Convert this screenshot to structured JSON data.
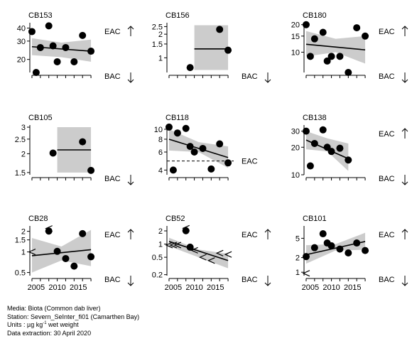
{
  "chart_data": [
    {
      "type": "scatter",
      "title": "CB153",
      "ylog": true,
      "ylim": [
        15,
        45
      ],
      "yticks": [
        20,
        30,
        40
      ],
      "points": [
        [
          2004,
          37
        ],
        [
          2005,
          15
        ],
        [
          2006,
          26
        ],
        [
          2008,
          42
        ],
        [
          2009,
          27
        ],
        [
          2010,
          19
        ],
        [
          2012,
          26
        ],
        [
          2014,
          19
        ],
        [
          2016,
          34
        ],
        [
          2018,
          24
        ]
      ],
      "trend": [
        [
          2004,
          26.5
        ],
        [
          2018,
          24
        ]
      ],
      "band": {
        "upper": [
          [
            2004,
            32
          ],
          [
            2011,
            29
          ],
          [
            2018,
            31
          ]
        ],
        "lower": [
          [
            2004,
            22
          ],
          [
            2011,
            21
          ],
          [
            2018,
            19
          ]
        ]
      },
      "eac_label": "EAC",
      "eac_dir": "up",
      "bac_label": "BAC",
      "bac_dir": "down",
      "refline": null,
      "censored": []
    },
    {
      "type": "scatter",
      "title": "CB156",
      "ylog": true,
      "ylim": [
        0.65,
        2.8
      ],
      "yticks": [
        1.0,
        1.5,
        2.0,
        2.5
      ],
      "points": [
        [
          2009,
          0.75
        ],
        [
          2016,
          2.3
        ],
        [
          2018,
          1.25
        ]
      ],
      "trend": [
        [
          2010,
          1.3
        ],
        [
          2018,
          1.3
        ]
      ],
      "band": {
        "upper": [
          [
            2010,
            2.6
          ],
          [
            2018,
            2.6
          ]
        ],
        "lower": [
          [
            2010,
            0.7
          ],
          [
            2018,
            0.7
          ]
        ]
      },
      "eac_label": "",
      "eac_dir": "",
      "bac_label": "BAC",
      "bac_dir": "down",
      "refline": null,
      "censored": []
    },
    {
      "type": "scatter",
      "title": "CB180",
      "ylog": true,
      "ylim": [
        6,
        21
      ],
      "yticks": [
        10,
        15,
        20
      ],
      "points": [
        [
          2004,
          20
        ],
        [
          2005,
          9
        ],
        [
          2006,
          14
        ],
        [
          2008,
          16.5
        ],
        [
          2009,
          8
        ],
        [
          2010,
          9
        ],
        [
          2012,
          9
        ],
        [
          2014,
          6
        ],
        [
          2016,
          18.5
        ],
        [
          2018,
          15
        ]
      ],
      "trend": [
        [
          2004,
          12.2
        ],
        [
          2018,
          10.6
        ]
      ],
      "band": {
        "upper": [
          [
            2004,
            17
          ],
          [
            2011,
            14
          ],
          [
            2018,
            15
          ]
        ],
        "lower": [
          [
            2004,
            9
          ],
          [
            2011,
            10
          ],
          [
            2018,
            7.5
          ]
        ]
      },
      "eac_label": "EAC",
      "eac_dir": "up",
      "bac_label": "BAC",
      "bac_dir": "down",
      "refline": null,
      "censored": []
    },
    {
      "type": "scatter",
      "title": "CB105",
      "ylog": true,
      "ylim": [
        1.45,
        3.1
      ],
      "yticks": [
        1.5,
        2.0,
        2.5,
        3.0
      ],
      "points": [
        [
          2009,
          2.02
        ],
        [
          2016,
          2.4
        ],
        [
          2018,
          1.55
        ]
      ],
      "trend": [
        [
          2010,
          2.12
        ],
        [
          2018,
          2.12
        ]
      ],
      "band": {
        "upper": [
          [
            2010,
            3.0
          ],
          [
            2018,
            3.0
          ]
        ],
        "lower": [
          [
            2010,
            1.5
          ],
          [
            2018,
            1.5
          ]
        ]
      },
      "eac_label": "",
      "eac_dir": "",
      "bac_label": "BAC",
      "bac_dir": "down",
      "refline": null,
      "censored": []
    },
    {
      "type": "scatter",
      "title": "CB118",
      "ylog": true,
      "ylim": [
        3.6,
        11
      ],
      "yticks": [
        4,
        6,
        8,
        10
      ],
      "points": [
        [
          2004,
          10.5
        ],
        [
          2005,
          4
        ],
        [
          2006,
          9.2
        ],
        [
          2008,
          10.2
        ],
        [
          2009,
          6.8
        ],
        [
          2010,
          6
        ],
        [
          2012,
          6.5
        ],
        [
          2014,
          4.1
        ],
        [
          2016,
          7.2
        ],
        [
          2018,
          4.7
        ]
      ],
      "trend": [
        [
          2004,
          8.0
        ],
        [
          2018,
          5.3
        ]
      ],
      "band": {
        "upper": [
          [
            2004,
            10
          ],
          [
            2011,
            7.5
          ],
          [
            2018,
            6.8
          ]
        ],
        "lower": [
          [
            2004,
            6.2
          ],
          [
            2011,
            6.0
          ],
          [
            2018,
            4.2
          ]
        ]
      },
      "eac_label": "EAC",
      "eac_dir": "",
      "bac_label": "",
      "bac_dir": "",
      "refline": 4.9,
      "censored": []
    },
    {
      "type": "scatter",
      "title": "CB138",
      "ylog": true,
      "ylim": [
        10,
        35
      ],
      "yticks": [
        10,
        20,
        30
      ],
      "points": [
        [
          2004,
          30
        ],
        [
          2005,
          12.5
        ],
        [
          2006,
          22
        ],
        [
          2008,
          31
        ],
        [
          2009,
          20
        ],
        [
          2010,
          18
        ],
        [
          2012,
          19.5
        ],
        [
          2014,
          14.5
        ]
      ],
      "trend": [
        [
          2004,
          24
        ],
        [
          2014,
          15
        ]
      ],
      "band": {
        "upper": [
          [
            2004,
            30
          ],
          [
            2009,
            25
          ],
          [
            2014,
            22
          ]
        ],
        "lower": [
          [
            2004,
            19
          ],
          [
            2009,
            18
          ],
          [
            2014,
            11
          ]
        ]
      },
      "eac_label": "EAC",
      "eac_dir": "up",
      "bac_label": "BAC",
      "bac_dir": "down",
      "refline": null,
      "censored": []
    },
    {
      "type": "scatter",
      "title": "CB28",
      "ylog": true,
      "ylim": [
        0.45,
        2.4
      ],
      "yticks": [
        0.5,
        1.0,
        1.5,
        2.0
      ],
      "points": [
        [
          2008,
          2.02
        ],
        [
          2010,
          1.02
        ],
        [
          2012,
          0.8
        ],
        [
          2014,
          0.62
        ],
        [
          2016,
          1.85
        ],
        [
          2018,
          0.85
        ]
      ],
      "trend": [
        [
          2004,
          0.88
        ],
        [
          2018,
          1.08
        ]
      ],
      "band": {
        "upper": [
          [
            2004,
            1.6
          ],
          [
            2011,
            1.2
          ],
          [
            2018,
            2.1
          ]
        ],
        "lower": [
          [
            2004,
            0.5
          ],
          [
            2011,
            0.75
          ],
          [
            2018,
            0.62
          ]
        ]
      },
      "eac_label": "EAC",
      "eac_dir": "up",
      "bac_label": "BAC",
      "bac_dir": "down",
      "refline": null,
      "censored": [
        [
          2004,
          1.0
        ],
        [
          2008,
          2.2
        ]
      ]
    },
    {
      "type": "scatter",
      "title": "CB52",
      "ylog": true,
      "ylim": [
        0.19,
        2.6
      ],
      "yticks": [
        0.2,
        0.5,
        1.0,
        2.0
      ],
      "points": [
        [
          2008,
          2.02
        ],
        [
          2009,
          0.85
        ]
      ],
      "trend": [
        [
          2004,
          1.15
        ],
        [
          2018,
          0.42
        ]
      ],
      "band": {
        "upper": [
          [
            2004,
            1.4
          ],
          [
            2011,
            0.75
          ],
          [
            2018,
            0.6
          ]
        ],
        "lower": [
          [
            2004,
            0.9
          ],
          [
            2011,
            0.5
          ],
          [
            2018,
            0.28
          ]
        ]
      },
      "eac_label": "EAC",
      "eac_dir": "up",
      "bac_label": "BAC",
      "bac_dir": "down",
      "refline": null,
      "censored": [
        [
          2004,
          0.95
        ],
        [
          2005,
          0.95
        ],
        [
          2006,
          0.95
        ],
        [
          2008,
          2.3
        ],
        [
          2010,
          0.72
        ],
        [
          2012,
          0.5
        ],
        [
          2014,
          0.42
        ],
        [
          2016,
          0.62
        ],
        [
          2018,
          0.58
        ]
      ]
    },
    {
      "type": "scatter",
      "title": "CB101",
      "ylog": true,
      "ylim": [
        0.85,
        9
      ],
      "yticks": [
        1,
        2,
        5
      ],
      "points": [
        [
          2004,
          2.1
        ],
        [
          2006,
          3.2
        ],
        [
          2008,
          6.2
        ],
        [
          2009,
          4.0
        ],
        [
          2010,
          3.5
        ],
        [
          2012,
          3.0
        ],
        [
          2014,
          2.5
        ],
        [
          2016,
          4.0
        ],
        [
          2018,
          2.8
        ]
      ],
      "trend": [
        [
          2004,
          2.3
        ],
        [
          2018,
          4.3
        ]
      ],
      "band": {
        "upper": [
          [
            2004,
            3.6
          ],
          [
            2011,
            3.8
          ],
          [
            2018,
            6.5
          ]
        ],
        "lower": [
          [
            2004,
            1.5
          ],
          [
            2011,
            2.8
          ],
          [
            2018,
            2.9
          ]
        ]
      },
      "eac_label": "EAC",
      "eac_dir": "up",
      "bac_label": "BAC",
      "bac_dir": "down",
      "refline": null,
      "censored": [
        [
          2004,
          0.95
        ]
      ]
    }
  ],
  "xaxis": {
    "ticks": [
      2005,
      2010,
      2015
    ],
    "range": [
      2003.5,
      2019
    ]
  },
  "colors": {
    "band": "#cccccc",
    "line": "#000000",
    "point": "#000000"
  },
  "footer": {
    "media": "Media: Biota (Common dab liver)",
    "station": "Station: Severn_SeInter_fi01 (Camarthen Bay)",
    "units_prefix": "Units : µg kg",
    "units_sup": "-1",
    "units_suffix": " wet weight",
    "extraction": "Data extraction: 30 April 2020"
  }
}
